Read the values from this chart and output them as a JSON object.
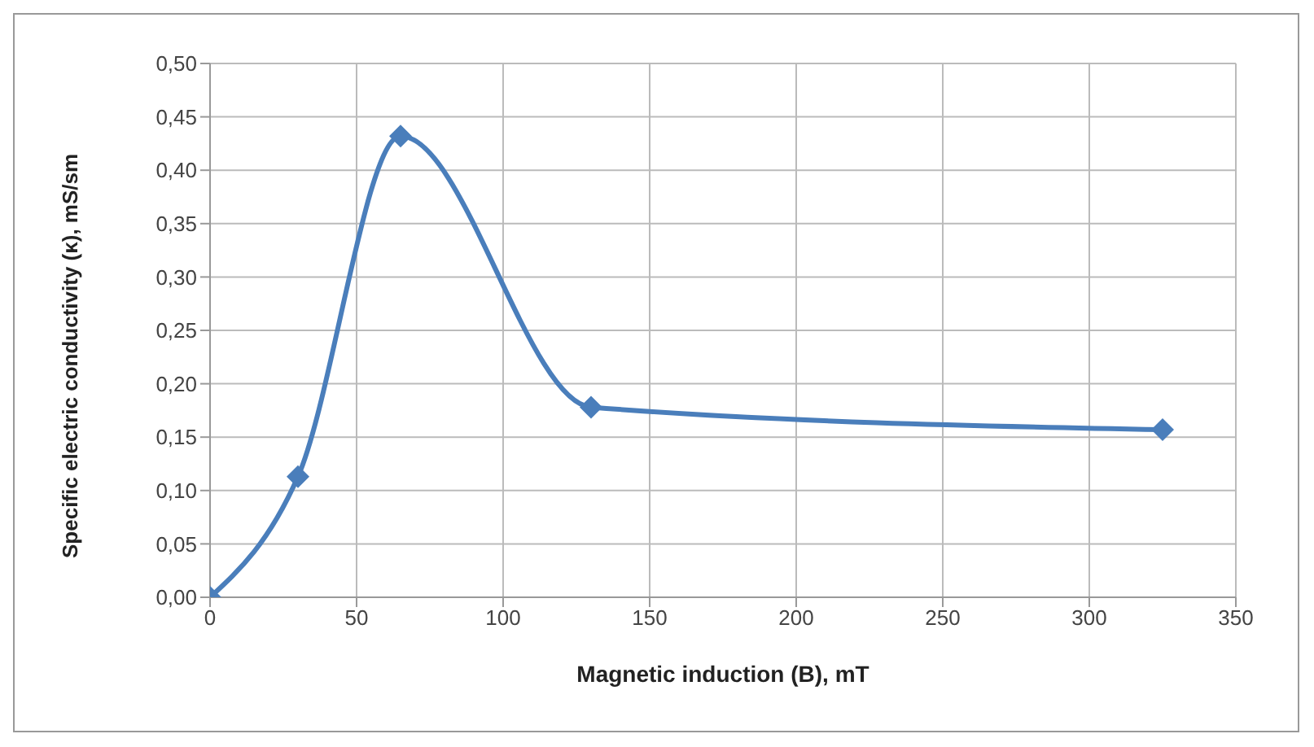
{
  "chart_data": {
    "type": "line",
    "xlabel": "Magnetic induction (B), mT",
    "ylabel": "Specific electric conductivity (κ), mS/sm",
    "x": [
      0,
      30,
      65,
      130,
      325
    ],
    "series": [
      {
        "color": "#4a7ebb",
        "values": [
          0,
          0.113,
          0.432,
          0.178,
          0.157
        ]
      }
    ],
    "xlim": [
      0,
      350
    ],
    "xticks": [
      0,
      50,
      100,
      150,
      200,
      250,
      300,
      350
    ],
    "ylim": [
      0,
      0.5
    ],
    "yticks": [
      {
        "value": 0,
        "label": "0,00"
      },
      {
        "value": 0.05,
        "label": "0,05"
      },
      {
        "value": 0.1,
        "label": "0,10"
      },
      {
        "value": 0.15,
        "label": "0,15"
      },
      {
        "value": 0.2,
        "label": "0,20"
      },
      {
        "value": 0.25,
        "label": "0,25"
      },
      {
        "value": 0.3,
        "label": "0,30"
      },
      {
        "value": 0.35,
        "label": "0,35"
      },
      {
        "value": 0.4,
        "label": "0,40"
      },
      {
        "value": 0.45,
        "label": "0,45"
      },
      {
        "value": 0.5,
        "label": "0,50"
      }
    ],
    "grid": true,
    "marker": "diamond",
    "line_style": "solid",
    "legend": false
  }
}
